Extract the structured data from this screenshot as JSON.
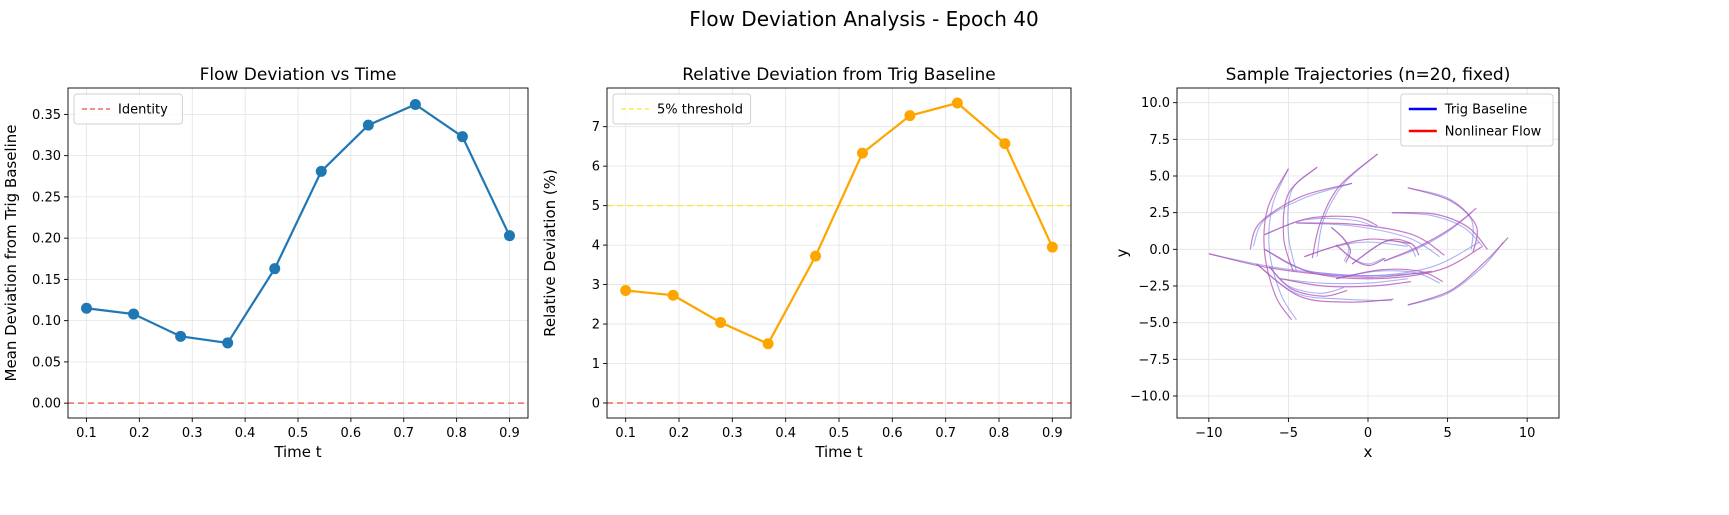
{
  "figure": {
    "suptitle": "Flow Deviation Analysis - Epoch 40"
  },
  "chart_data": [
    {
      "type": "line",
      "title": "Flow Deviation vs Time",
      "xlabel": "Time t",
      "ylabel": "Mean Deviation from Trig Baseline",
      "xlim": [
        0.065,
        0.935
      ],
      "ylim": [
        -0.018,
        0.382
      ],
      "xticks": [
        0.1,
        0.2,
        0.3,
        0.4,
        0.5,
        0.6,
        0.7,
        0.8,
        0.9
      ],
      "yticks": [
        0.0,
        0.05,
        0.1,
        0.15,
        0.2,
        0.25,
        0.3,
        0.35
      ],
      "ytick_decimals": 2,
      "grid": true,
      "legend": {
        "placement": "top-left",
        "entries": [
          {
            "label": "Identity",
            "color": "#f06a5c",
            "style": "dashed"
          }
        ]
      },
      "hlines": [
        {
          "y": 0.0,
          "color": "#f06a5c",
          "style": "dashed"
        }
      ],
      "series": [
        {
          "color": "#1f77b4",
          "x": [
            0.1,
            0.189,
            0.278,
            0.367,
            0.456,
            0.544,
            0.633,
            0.722,
            0.811,
            0.9
          ],
          "values": [
            0.115,
            0.108,
            0.081,
            0.073,
            0.163,
            0.281,
            0.337,
            0.362,
            0.323,
            0.203
          ]
        }
      ]
    },
    {
      "type": "line",
      "title": "Relative Deviation from Trig Baseline",
      "xlabel": "Time t",
      "ylabel": "Relative Deviation (%)",
      "xlim": [
        0.065,
        0.935
      ],
      "ylim": [
        -0.38,
        7.98
      ],
      "xticks": [
        0.1,
        0.2,
        0.3,
        0.4,
        0.5,
        0.6,
        0.7,
        0.8,
        0.9
      ],
      "yticks": [
        0,
        1,
        2,
        3,
        4,
        5,
        6,
        7
      ],
      "ytick_decimals": 0,
      "grid": true,
      "legend": {
        "placement": "top-left",
        "entries": [
          {
            "label": "5% threshold",
            "color": "#ffe84a",
            "style": "dashed"
          }
        ]
      },
      "hlines": [
        {
          "y": 5,
          "color": "#ffe84a",
          "style": "dashed"
        },
        {
          "y": 0,
          "color": "#f06a5c",
          "style": "dashed"
        }
      ],
      "series": [
        {
          "color": "#ffa500",
          "x": [
            0.1,
            0.189,
            0.278,
            0.367,
            0.456,
            0.544,
            0.633,
            0.722,
            0.811,
            0.9
          ],
          "values": [
            2.85,
            2.73,
            2.04,
            1.5,
            3.72,
            6.33,
            7.28,
            7.6,
            6.57,
            3.95
          ]
        }
      ]
    },
    {
      "type": "line",
      "title": "Sample Trajectories (n=20, fixed)",
      "xlabel": "x",
      "ylabel": "y",
      "xlim": [
        -12,
        12
      ],
      "ylim": [
        -11.5,
        11
      ],
      "xticks": [
        -10,
        -5,
        0,
        5,
        10
      ],
      "yticks": [
        -10,
        -7.5,
        -5,
        -2.5,
        0,
        2.5,
        5,
        7.5,
        10
      ],
      "ytick_decimals": 1,
      "grid": true,
      "legend": {
        "placement": "top-right",
        "entries": [
          {
            "label": "Trig Baseline",
            "color": "#0000ff",
            "style": "solid"
          },
          {
            "label": "Nonlinear Flow",
            "color": "#ff0000",
            "style": "solid"
          }
        ]
      },
      "trajectories": [
        {
          "baseline": [
            [
              -10,
              -0.3
            ],
            [
              -7,
              -1
            ],
            [
              -4,
              -1.5
            ],
            [
              0,
              -1.8
            ],
            [
              3.5,
              -1.6
            ]
          ],
          "flow": [
            [
              -10,
              -0.3
            ],
            [
              -6.5,
              -1.2
            ],
            [
              -3,
              -1.7
            ],
            [
              0.5,
              -1.9
            ],
            [
              4,
              -1.5
            ]
          ]
        },
        {
          "baseline": [
            [
              -6.5,
              0
            ],
            [
              -4,
              -1.4
            ],
            [
              0,
              -1.8
            ],
            [
              4,
              -1.2
            ],
            [
              7,
              0.5
            ]
          ],
          "flow": [
            [
              -6.5,
              0
            ],
            [
              -3.5,
              -1.6
            ],
            [
              0.5,
              -2
            ],
            [
              4.5,
              -1.4
            ],
            [
              7.2,
              0.2
            ]
          ]
        },
        {
          "baseline": [
            [
              -5,
              5.5
            ],
            [
              -6,
              3
            ],
            [
              -6.2,
              0
            ],
            [
              -5.5,
              -3
            ],
            [
              -4.5,
              -4.8
            ]
          ],
          "flow": [
            [
              -5,
              5.5
            ],
            [
              -6.3,
              2.8
            ],
            [
              -6.5,
              -0.2
            ],
            [
              -5.8,
              -3.2
            ],
            [
              -4.8,
              -4.8
            ]
          ]
        },
        {
          "baseline": [
            [
              -3.2,
              5.6
            ],
            [
              -4.8,
              4
            ],
            [
              -5,
              1
            ],
            [
              -4.5,
              -1.5
            ]
          ],
          "flow": [
            [
              -3.2,
              5.6
            ],
            [
              -5,
              3.8
            ],
            [
              -5.3,
              0.8
            ],
            [
              -4.7,
              -1.5
            ]
          ]
        },
        {
          "baseline": [
            [
              0.6,
              6.5
            ],
            [
              -1.5,
              4.5
            ],
            [
              -2.8,
              2
            ],
            [
              -3.2,
              -0.5
            ]
          ],
          "flow": [
            [
              0.6,
              6.5
            ],
            [
              -1.8,
              4.3
            ],
            [
              -3,
              1.8
            ],
            [
              -3.5,
              -0.6
            ]
          ]
        },
        {
          "baseline": [
            [
              -1,
              4.5
            ],
            [
              -4,
              3.5
            ],
            [
              -6.5,
              2
            ],
            [
              -7.2,
              0.2
            ]
          ],
          "flow": [
            [
              -1,
              4.5
            ],
            [
              -4.2,
              3.6
            ],
            [
              -6.8,
              1.8
            ],
            [
              -7.4,
              0
            ]
          ]
        },
        {
          "baseline": [
            [
              2.5,
              4.2
            ],
            [
              5,
              3.5
            ],
            [
              6.5,
              2
            ],
            [
              6.5,
              0
            ]
          ],
          "flow": [
            [
              2.5,
              4.2
            ],
            [
              5.2,
              3.3
            ],
            [
              6.8,
              1.6
            ],
            [
              6.6,
              -0.2
            ]
          ]
        },
        {
          "baseline": [
            [
              -4.5,
              1.8
            ],
            [
              -1,
              1.6
            ],
            [
              2.5,
              0.8
            ],
            [
              4.5,
              -0.5
            ]
          ],
          "flow": [
            [
              -4.5,
              1.8
            ],
            [
              -0.8,
              1.7
            ],
            [
              2.8,
              1
            ],
            [
              4.8,
              -0.4
            ]
          ]
        },
        {
          "baseline": [
            [
              -6.5,
              1
            ],
            [
              -4,
              2
            ],
            [
              -1,
              2
            ],
            [
              0.5,
              1.5
            ]
          ],
          "flow": [
            [
              -6.5,
              1
            ],
            [
              -3.8,
              2.1
            ],
            [
              -0.8,
              2.2
            ],
            [
              0.6,
              1.6
            ]
          ]
        },
        {
          "baseline": [
            [
              1,
              -0.8
            ],
            [
              3,
              0
            ],
            [
              5,
              1.2
            ],
            [
              6.5,
              2.5
            ]
          ],
          "flow": [
            [
              1,
              -0.8
            ],
            [
              3.2,
              0.2
            ],
            [
              5.3,
              1.5
            ],
            [
              6.8,
              2.8
            ]
          ]
        },
        {
          "baseline": [
            [
              2.5,
              -3.8
            ],
            [
              5,
              -3
            ],
            [
              7.2,
              -1.2
            ],
            [
              8.5,
              0.5
            ]
          ],
          "flow": [
            [
              2.5,
              -3.8
            ],
            [
              5.2,
              -2.8
            ],
            [
              7.4,
              -0.8
            ],
            [
              8.8,
              0.8
            ]
          ]
        },
        {
          "baseline": [
            [
              -2,
              -2
            ],
            [
              0.5,
              -1.5
            ],
            [
              3,
              -1.6
            ],
            [
              4.5,
              -2.3
            ]
          ],
          "flow": [
            [
              -2,
              -2
            ],
            [
              0.8,
              -1.4
            ],
            [
              3.3,
              -1.5
            ],
            [
              4.7,
              -2.2
            ]
          ]
        },
        {
          "baseline": [
            [
              1.5,
              2.5
            ],
            [
              4,
              2.3
            ],
            [
              6,
              1.5
            ],
            [
              7.2,
              0.2
            ]
          ],
          "flow": [
            [
              1.5,
              2.5
            ],
            [
              4.2,
              2.4
            ],
            [
              6.3,
              1.5
            ],
            [
              7.5,
              0
            ]
          ]
        },
        {
          "baseline": [
            [
              -1,
              -1
            ],
            [
              1,
              0.5
            ],
            [
              2.5,
              0.3
            ],
            [
              3,
              -0.5
            ]
          ],
          "flow": [
            [
              -1,
              -1
            ],
            [
              1.2,
              0.6
            ],
            [
              2.7,
              0.4
            ],
            [
              3.2,
              -0.4
            ]
          ]
        },
        {
          "baseline": [
            [
              -5.5,
              -2
            ],
            [
              -3,
              -2.3
            ],
            [
              0,
              -2.3
            ],
            [
              2.5,
              -2
            ]
          ],
          "flow": [
            [
              -5.5,
              -2
            ],
            [
              -2.8,
              -2.5
            ],
            [
              0.3,
              -2.5
            ],
            [
              2.7,
              -2.2
            ]
          ]
        },
        {
          "baseline": [
            [
              -7,
              -1
            ],
            [
              -4.5,
              -3
            ],
            [
              -1.5,
              -3.4
            ],
            [
              1.5,
              -3.5
            ]
          ],
          "flow": [
            [
              -7,
              -1
            ],
            [
              -4.3,
              -3.2
            ],
            [
              -1.2,
              -3.6
            ],
            [
              1.6,
              -3.4
            ]
          ]
        },
        {
          "baseline": [
            [
              -2,
              0.3
            ],
            [
              -1,
              -0.6
            ],
            [
              0,
              -1
            ],
            [
              1,
              -0.6
            ]
          ],
          "flow": [
            [
              -2,
              0.3
            ],
            [
              -0.9,
              -0.7
            ],
            [
              0.1,
              -1.1
            ],
            [
              1.1,
              -0.6
            ]
          ]
        },
        {
          "baseline": [
            [
              -4,
              -0.5
            ],
            [
              -2,
              0.2
            ],
            [
              0,
              0.5
            ],
            [
              2.5,
              0.2
            ]
          ],
          "flow": [
            [
              -4,
              -0.5
            ],
            [
              -1.8,
              0.3
            ],
            [
              0.3,
              0.7
            ],
            [
              2.7,
              0.4
            ]
          ]
        },
        {
          "baseline": [
            [
              -6.2,
              -1.2
            ],
            [
              -5,
              -2.5
            ],
            [
              -3,
              -3
            ],
            [
              -1.5,
              -2.6
            ]
          ],
          "flow": [
            [
              -6.2,
              -1.2
            ],
            [
              -4.8,
              -2.7
            ],
            [
              -2.8,
              -3.2
            ],
            [
              -1.3,
              -2.8
            ]
          ]
        },
        {
          "baseline": [
            [
              -2.3,
              1.5
            ],
            [
              -1.6,
              0.8
            ],
            [
              -1.2,
              0
            ],
            [
              -1.5,
              -0.8
            ]
          ],
          "flow": [
            [
              -2.3,
              1.5
            ],
            [
              -1.5,
              0.7
            ],
            [
              -1.1,
              -0.1
            ],
            [
              -1.4,
              -0.9
            ]
          ]
        }
      ],
      "baseline_color": "#6f7ff0",
      "flow_color": "#b24fb0"
    }
  ]
}
